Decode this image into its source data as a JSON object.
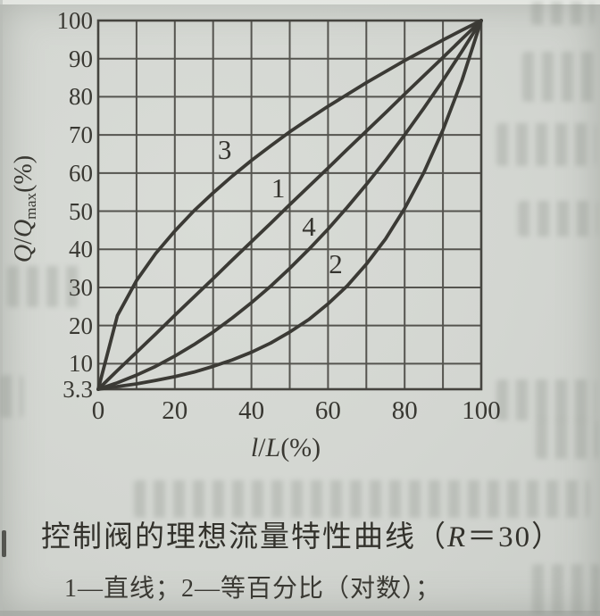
{
  "page_bg": "#d3d6d1",
  "ink_color": "#3b3a35",
  "grid_color": "#55544f",
  "axis": {
    "y_title": {
      "q1": "Q",
      "slash": "/",
      "q2": "Q",
      "sub": "max",
      "unit": "(%)"
    },
    "x_title": {
      "l": "l",
      "slash": "/",
      "L": "L",
      "unit": "(%)"
    },
    "y_ticks": [
      "100",
      "90",
      "80",
      "70",
      "60",
      "50",
      "40",
      "30",
      "20",
      "10",
      "3.3"
    ],
    "x_ticks": [
      "0",
      "20",
      "40",
      "60",
      "80",
      "100"
    ]
  },
  "caption": {
    "pre": "控制阀的理想流量特性曲线（",
    "r": "R",
    "post": "＝30）"
  },
  "legend_line": "1—直线；2—等百分比（对数）；",
  "chart_data": {
    "type": "line",
    "title": "控制阀的理想流量特性曲线（R＝30）",
    "xlabel": "l/L(%)",
    "ylabel": "Q/Qmax(%)",
    "xlim": [
      0,
      100
    ],
    "ylim": [
      3.3,
      100
    ],
    "grid": "on, 10-unit spacing on both axes",
    "legend_note": "1—直线；2—等百分比（对数）；",
    "x": [
      0,
      5,
      10,
      15,
      20,
      25,
      30,
      35,
      40,
      45,
      50,
      55,
      60,
      65,
      70,
      75,
      80,
      85,
      90,
      95,
      100
    ],
    "series": [
      {
        "name": "1",
        "label": {
          "text": "1",
          "x": 47,
          "y": 56
        },
        "values": [
          3.3,
          8.2,
          13.0,
          17.8,
          22.7,
          27.5,
          32.3,
          37.2,
          42.0,
          46.8,
          51.7,
          56.5,
          61.3,
          66.2,
          71.0,
          75.8,
          80.7,
          85.5,
          90.3,
          95.2,
          100
        ]
      },
      {
        "name": "2",
        "label": {
          "text": "2",
          "x": 62,
          "y": 36
        },
        "values": [
          3.3,
          4.0,
          4.7,
          5.6,
          6.6,
          7.8,
          9.3,
          11.0,
          13.0,
          15.4,
          18.3,
          21.6,
          25.7,
          30.4,
          36.1,
          42.7,
          50.7,
          60.1,
          71.3,
          84.4,
          100
        ]
      },
      {
        "name": "3",
        "label": {
          "text": "3",
          "x": 33,
          "y": 66
        },
        "values": [
          3.3,
          22.6,
          31.8,
          38.9,
          44.8,
          50.1,
          54.8,
          59.2,
          63.3,
          67.1,
          70.8,
          74.2,
          77.5,
          80.6,
          83.7,
          86.6,
          89.5,
          92.2,
          94.9,
          97.5,
          100
        ]
      },
      {
        "name": "4",
        "label": {
          "text": "4",
          "x": 55,
          "y": 46
        },
        "values": [
          3.3,
          5.0,
          7.0,
          9.3,
          12.0,
          15.0,
          18.3,
          22.0,
          26.0,
          30.3,
          35.0,
          40.0,
          45.3,
          51.0,
          57.0,
          63.3,
          70.0,
          77.0,
          84.3,
          92.0,
          100
        ]
      }
    ]
  }
}
